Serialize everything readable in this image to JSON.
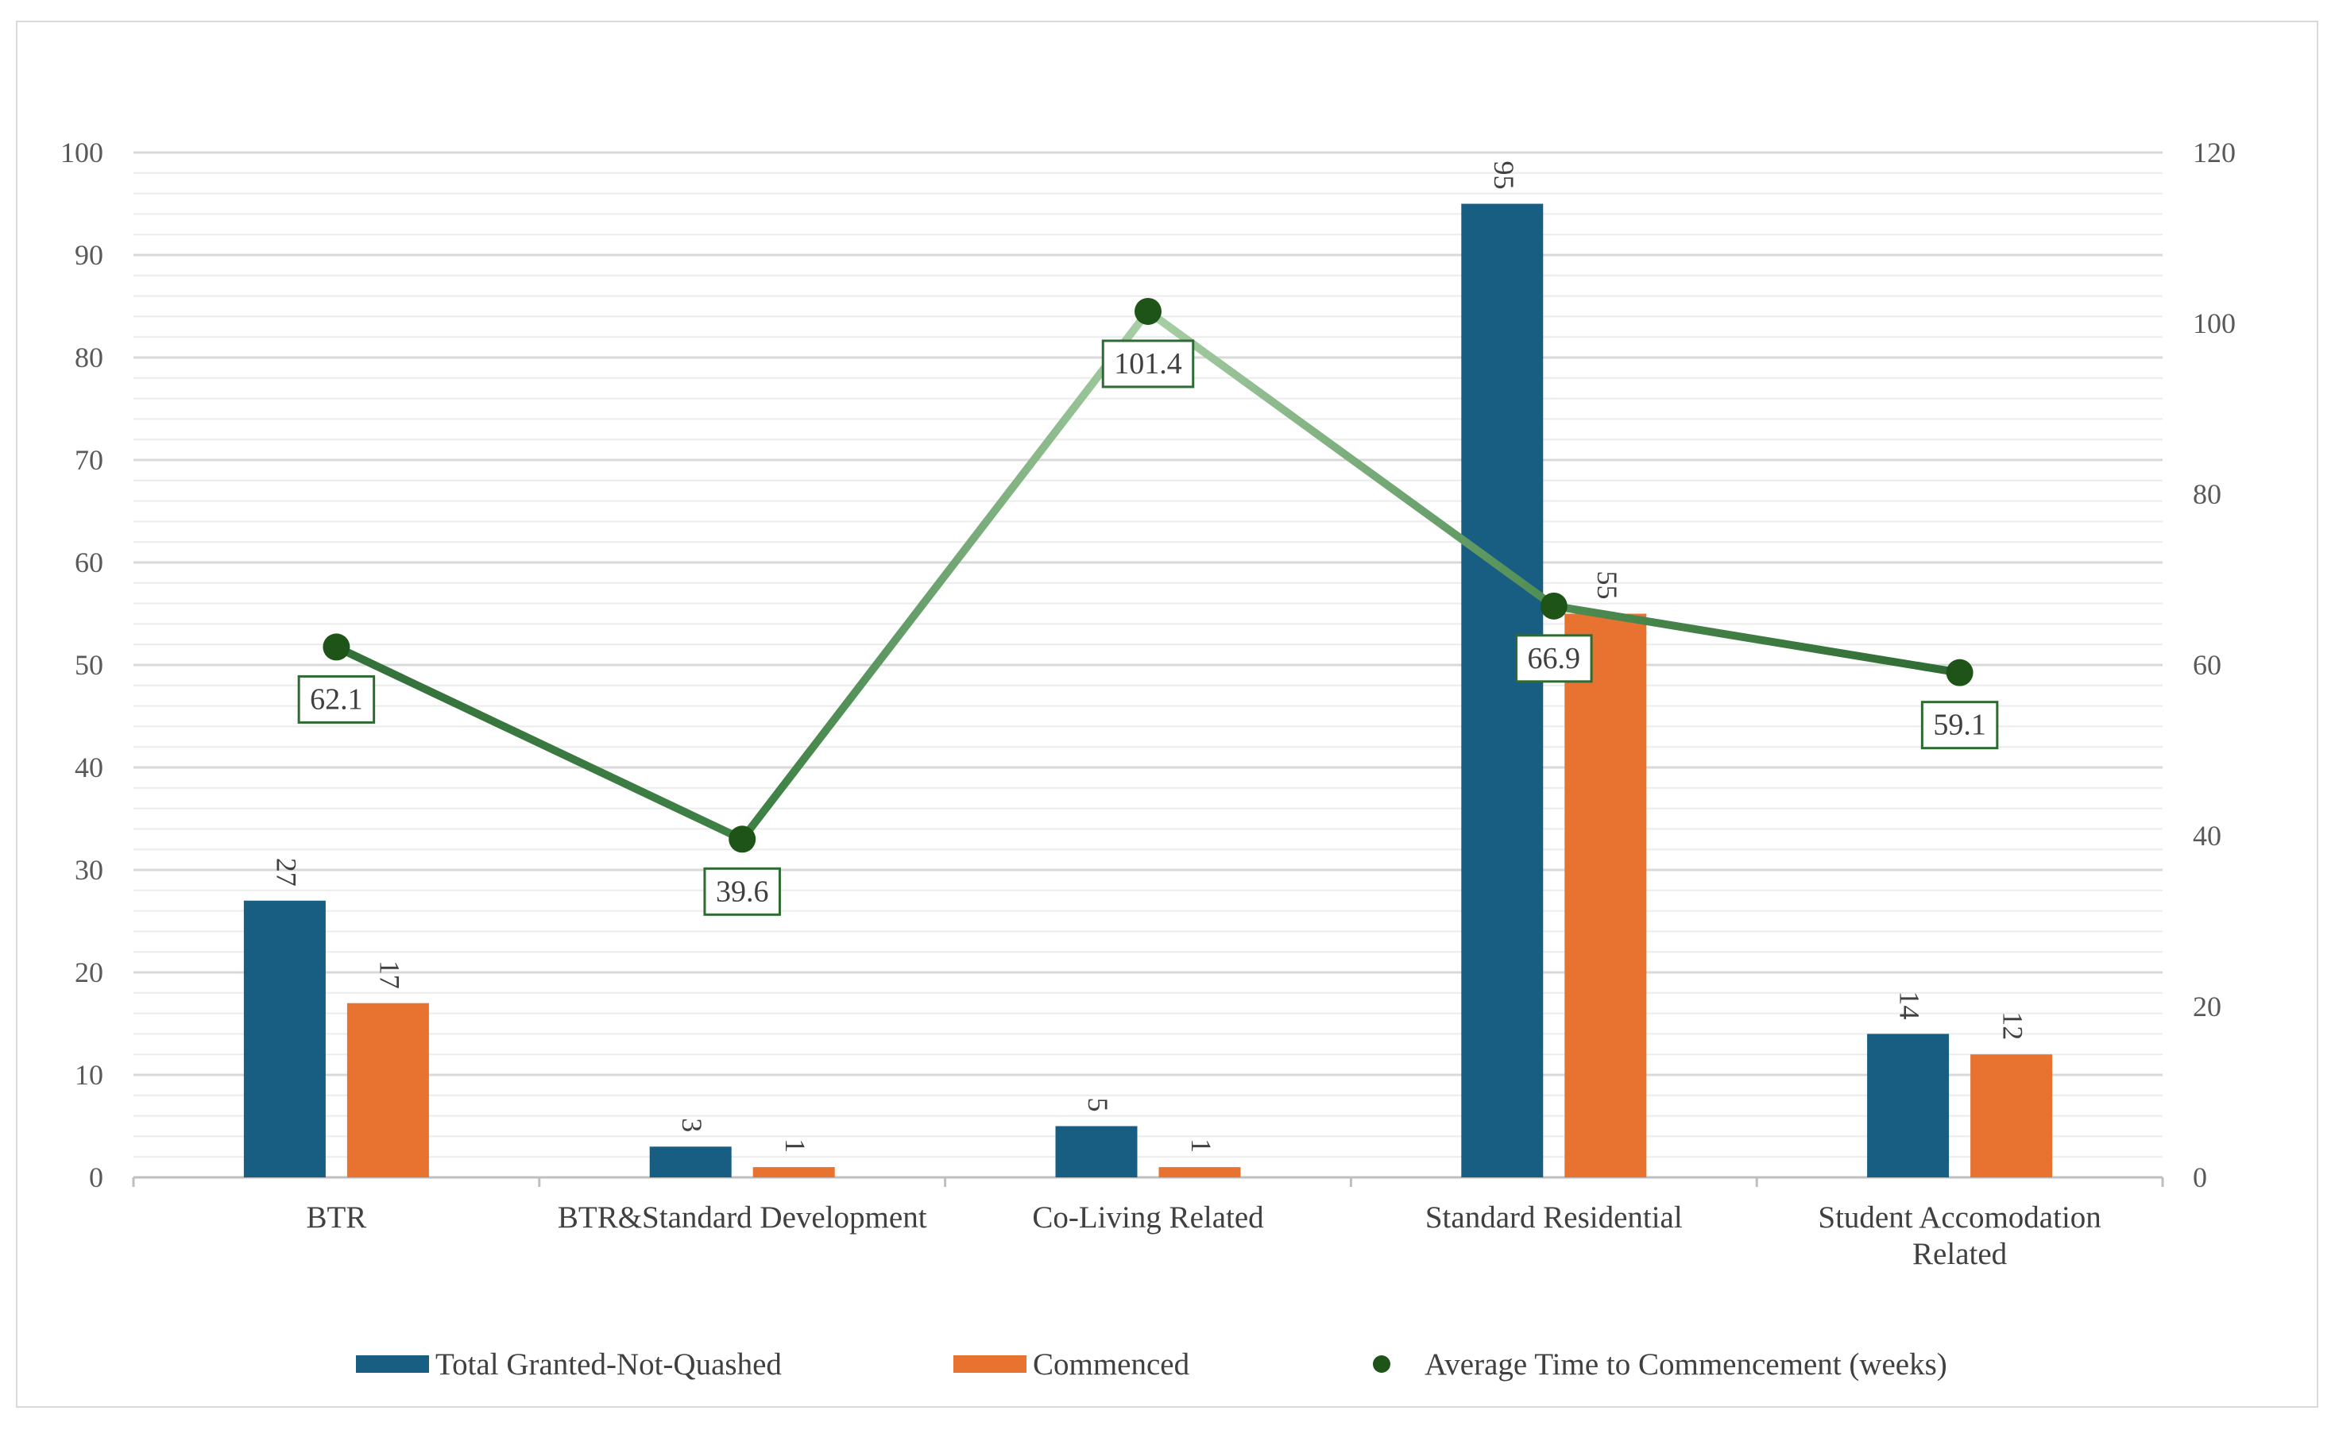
{
  "chart_data": {
    "type": "bar",
    "title": "",
    "categories": [
      [
        "BTR"
      ],
      [
        "BTR&Standard Development"
      ],
      [
        "Co-Living Related"
      ],
      [
        "Standard Residential"
      ],
      [
        "Student Accomodation",
        "Related"
      ]
    ],
    "series": [
      {
        "name": "Total Granted-Not-Quashed",
        "type": "bar",
        "axis": "left",
        "color": "#175e82",
        "values": [
          27,
          3,
          5,
          95,
          14
        ]
      },
      {
        "name": "Commenced",
        "type": "bar",
        "axis": "left",
        "color": "#e87230",
        "values": [
          17,
          1,
          1,
          55,
          12
        ]
      },
      {
        "name": "Average Time to Commencement (weeks)",
        "type": "line",
        "axis": "right",
        "color": "#2e6b32",
        "marker_color": "#1e5418",
        "values": [
          62.1,
          39.6,
          101.4,
          66.9,
          59.1
        ]
      }
    ],
    "y_left": {
      "min": 0,
      "max": 100,
      "ticks": [
        0,
        10,
        20,
        30,
        40,
        50,
        60,
        70,
        80,
        90,
        100
      ]
    },
    "y_right": {
      "min": 0,
      "max": 120,
      "ticks": [
        0,
        20,
        40,
        60,
        80,
        100,
        120
      ]
    },
    "grid": true,
    "legend_position": "bottom"
  }
}
